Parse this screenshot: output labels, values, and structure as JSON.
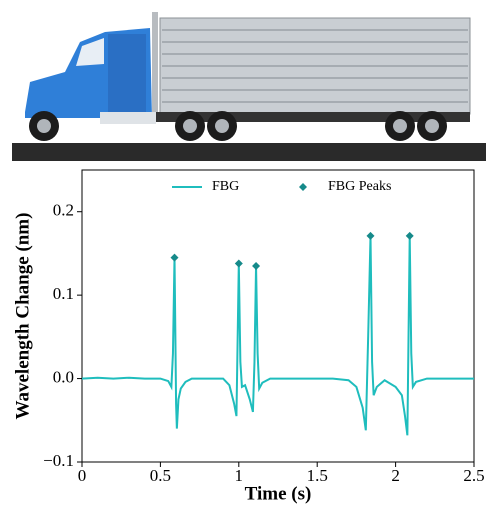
{
  "chart_data": {
    "type": "line",
    "xlabel": "Time (s)",
    "ylabel": "Wavelength Change (nm)",
    "xlim": [
      0,
      2.5
    ],
    "ylim": [
      -0.1,
      0.25
    ],
    "xticks": [
      0,
      0.5,
      1,
      1.5,
      2,
      2.5
    ],
    "yticks": [
      {
        "value": -0.1,
        "label": "−0.1"
      },
      {
        "value": 0,
        "label": "0.0"
      },
      0.1,
      0.2
    ],
    "legend": "top",
    "series": [
      {
        "name": "FBG",
        "color": "#1fbdbd",
        "kind": "line",
        "x": [
          0,
          0.1,
          0.2,
          0.3,
          0.4,
          0.5,
          0.55,
          0.57,
          0.58,
          0.59,
          0.595,
          0.6,
          0.605,
          0.615,
          0.63,
          0.66,
          0.7,
          0.8,
          0.9,
          0.94,
          0.97,
          0.985,
          1.0,
          1.01,
          1.02,
          1.04,
          1.07,
          1.09,
          1.1,
          1.11,
          1.12,
          1.13,
          1.15,
          1.2,
          1.3,
          1.4,
          1.5,
          1.6,
          1.7,
          1.75,
          1.79,
          1.81,
          1.825,
          1.84,
          1.85,
          1.86,
          1.88,
          1.93,
          2.0,
          2.04,
          2.06,
          2.075,
          2.09,
          2.1,
          2.11,
          2.13,
          2.2,
          2.3,
          2.4,
          2.5
        ],
        "values": [
          0.0,
          0.001,
          0.0,
          0.001,
          0.0,
          0.0,
          -0.003,
          -0.01,
          0.03,
          0.145,
          0.06,
          -0.03,
          -0.06,
          -0.025,
          -0.012,
          -0.004,
          0.0,
          0.0,
          0.0,
          -0.008,
          -0.03,
          -0.045,
          0.138,
          0.02,
          -0.01,
          -0.008,
          -0.025,
          -0.04,
          0.02,
          0.135,
          0.03,
          -0.012,
          -0.005,
          0.0,
          0.0,
          0.0,
          0.0,
          0.0,
          -0.002,
          -0.01,
          -0.035,
          -0.062,
          0.05,
          0.171,
          0.02,
          -0.02,
          -0.01,
          -0.002,
          -0.01,
          -0.02,
          -0.045,
          -0.068,
          0.171,
          0.03,
          -0.01,
          -0.004,
          0.0,
          0.0,
          0.0,
          0.0
        ]
      },
      {
        "name": "FBG Peaks",
        "color": "#168a8a",
        "kind": "scatter",
        "x": [
          0.59,
          1.0,
          1.11,
          1.84,
          2.09
        ],
        "values": [
          0.145,
          0.138,
          0.135,
          0.171,
          0.171
        ]
      }
    ]
  }
}
